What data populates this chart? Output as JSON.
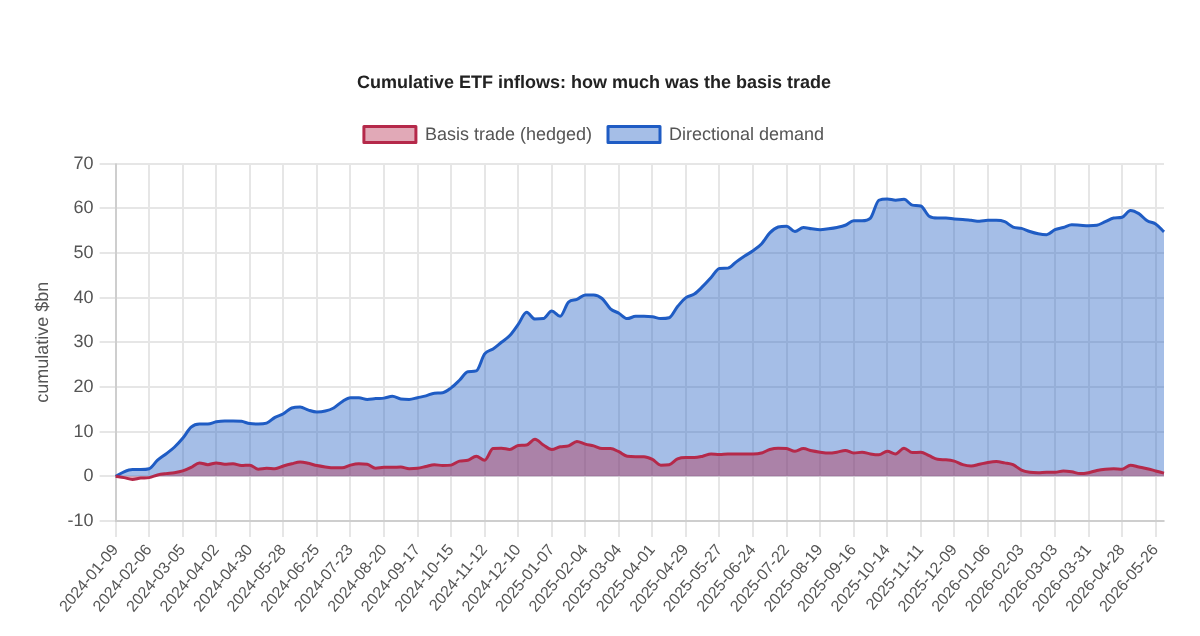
{
  "chart_data": {
    "type": "area",
    "title": "Cumulative ETF inflows: how much was the basis trade",
    "ylabel": "cumulative $bn",
    "categories": [
      "2024-01-09",
      null,
      null,
      null,
      "2024-02-06",
      null,
      null,
      null,
      "2024-03-05",
      null,
      null,
      null,
      "2024-04-02",
      null,
      null,
      null,
      "2024-04-30",
      null,
      null,
      null,
      "2024-05-28",
      null,
      null,
      null,
      "2024-06-25",
      null,
      null,
      null,
      "2024-07-23",
      null,
      null,
      null,
      "2024-08-20",
      null,
      null,
      null,
      "2024-09-17",
      null,
      null,
      null,
      "2024-10-15",
      null,
      null,
      null,
      "2024-11-12",
      null,
      null,
      null,
      "2024-12-10",
      null,
      null,
      null,
      "2025-01-07",
      null,
      null,
      null,
      "2025-02-04",
      null,
      null,
      null,
      "2025-03-04",
      null,
      null,
      null,
      "2025-04-01",
      null,
      null,
      null,
      "2025-04-29",
      null,
      null,
      null,
      "2025-05-27",
      null,
      null,
      null,
      "2025-06-24",
      null,
      null,
      null,
      "2025-07-22",
      null,
      null,
      null,
      "2025-08-19",
      null,
      null,
      null,
      "2025-09-16",
      null,
      null,
      null,
      "2025-10-14",
      null,
      null,
      null,
      "2025-11-11",
      null,
      null,
      null,
      "2025-12-09",
      null,
      null,
      null,
      "2026-01-06",
      null,
      null,
      null,
      "2026-02-03",
      null,
      null,
      null,
      "2026-03-03",
      null,
      null,
      null,
      "2026-03-31",
      null,
      null,
      null,
      "2026-04-28",
      null,
      null,
      null,
      "2026-05-26",
      null
    ],
    "series": [
      {
        "name": "Basis trade (hedged)",
        "color": "#b5294a",
        "values": [
          0,
          -0.3,
          -0.7,
          -0.4,
          -0.3,
          0.3,
          0.6,
          0.8,
          1.2,
          2,
          3,
          2.6,
          3,
          2.7,
          2.8,
          2.4,
          2.5,
          1.6,
          1.8,
          1.7,
          2.3,
          2.8,
          3.2,
          2.9,
          2.4,
          2.1,
          1.9,
          1.9,
          2.5,
          2.8,
          2.7,
          1.8,
          2,
          2,
          2.1,
          1.7,
          1.8,
          2.2,
          2.6,
          2.4,
          2.5,
          3.4,
          3.6,
          4.5,
          3.6,
          6.2,
          6.3,
          6,
          6.9,
          7,
          8.3,
          7,
          6,
          6.6,
          6.8,
          7.8,
          7.2,
          6.8,
          6.2,
          6.2,
          5.5,
          4.5,
          4.4,
          4.4,
          3.8,
          2.5,
          2.6,
          3.9,
          4.2,
          4.2,
          4.5,
          5,
          4.9,
          5,
          5,
          5,
          5,
          5.2,
          6,
          6.3,
          6.2,
          5.6,
          6.2,
          5.7,
          5.4,
          5.2,
          5.4,
          5.8,
          5.2,
          5.4,
          5,
          4.8,
          5.6,
          5,
          6.3,
          5.3,
          5.4,
          4.6,
          3.8,
          3.7,
          3.4,
          2.6,
          2.3,
          2.7,
          3.1,
          3.3,
          3,
          2.6,
          1.4,
          0.9,
          0.8,
          0.9,
          0.9,
          1.2,
          1,
          0.6,
          0.8,
          1.3,
          1.6,
          1.7,
          1.6,
          2.5,
          2.1,
          1.7,
          1.2,
          0.7
        ]
      },
      {
        "name": "Directional demand",
        "color": "#1f5cc4",
        "values": [
          0,
          1,
          1.5,
          1.5,
          1.7,
          3.6,
          5,
          6.5,
          8.5,
          11,
          11.7,
          11.7,
          12.2,
          12.4,
          12.4,
          12.3,
          11.8,
          11.7,
          11.9,
          13.2,
          14,
          15.3,
          15.5,
          14.8,
          14.4,
          14.6,
          15.3,
          16.7,
          17.6,
          17.6,
          17.2,
          17.4,
          17.5,
          17.9,
          17.3,
          17.2,
          17.6,
          18,
          18.6,
          18.7,
          19.8,
          21.5,
          23.4,
          23.6,
          27.4,
          28.5,
          30,
          31.5,
          34,
          36.7,
          35.2,
          35.3,
          37,
          35.8,
          39,
          39.6,
          40.6,
          40.6,
          39.8,
          37.5,
          36.5,
          35.3,
          35.8,
          35.8,
          35.7,
          35.3,
          35.5,
          38,
          40,
          40.8,
          42.5,
          44.5,
          46.5,
          46.6,
          48,
          49.3,
          50.5,
          52,
          54.5,
          55.8,
          56,
          54.8,
          55.7,
          55.4,
          55.2,
          55.4,
          55.7,
          56.2,
          57.2,
          57.2,
          57.8,
          61.8,
          62.1,
          61.8,
          62,
          60.7,
          60.5,
          58.2,
          57.8,
          57.8,
          57.6,
          57.5,
          57.3,
          57.1,
          57.3,
          57.3,
          57,
          55.8,
          55.5,
          54.8,
          54.3,
          54.1,
          55.2,
          55.7,
          56.3,
          56.2,
          56.1,
          56.2,
          57,
          57.8,
          58,
          59.5,
          58.8,
          57.2,
          56.5,
          54.7
        ]
      }
    ],
    "ylim": [
      -10,
      70
    ],
    "yticks": [
      -10,
      0,
      10,
      20,
      30,
      40,
      50,
      60,
      70
    ],
    "grid": true,
    "legend": "top",
    "marker": "none",
    "line_style": "solid"
  }
}
